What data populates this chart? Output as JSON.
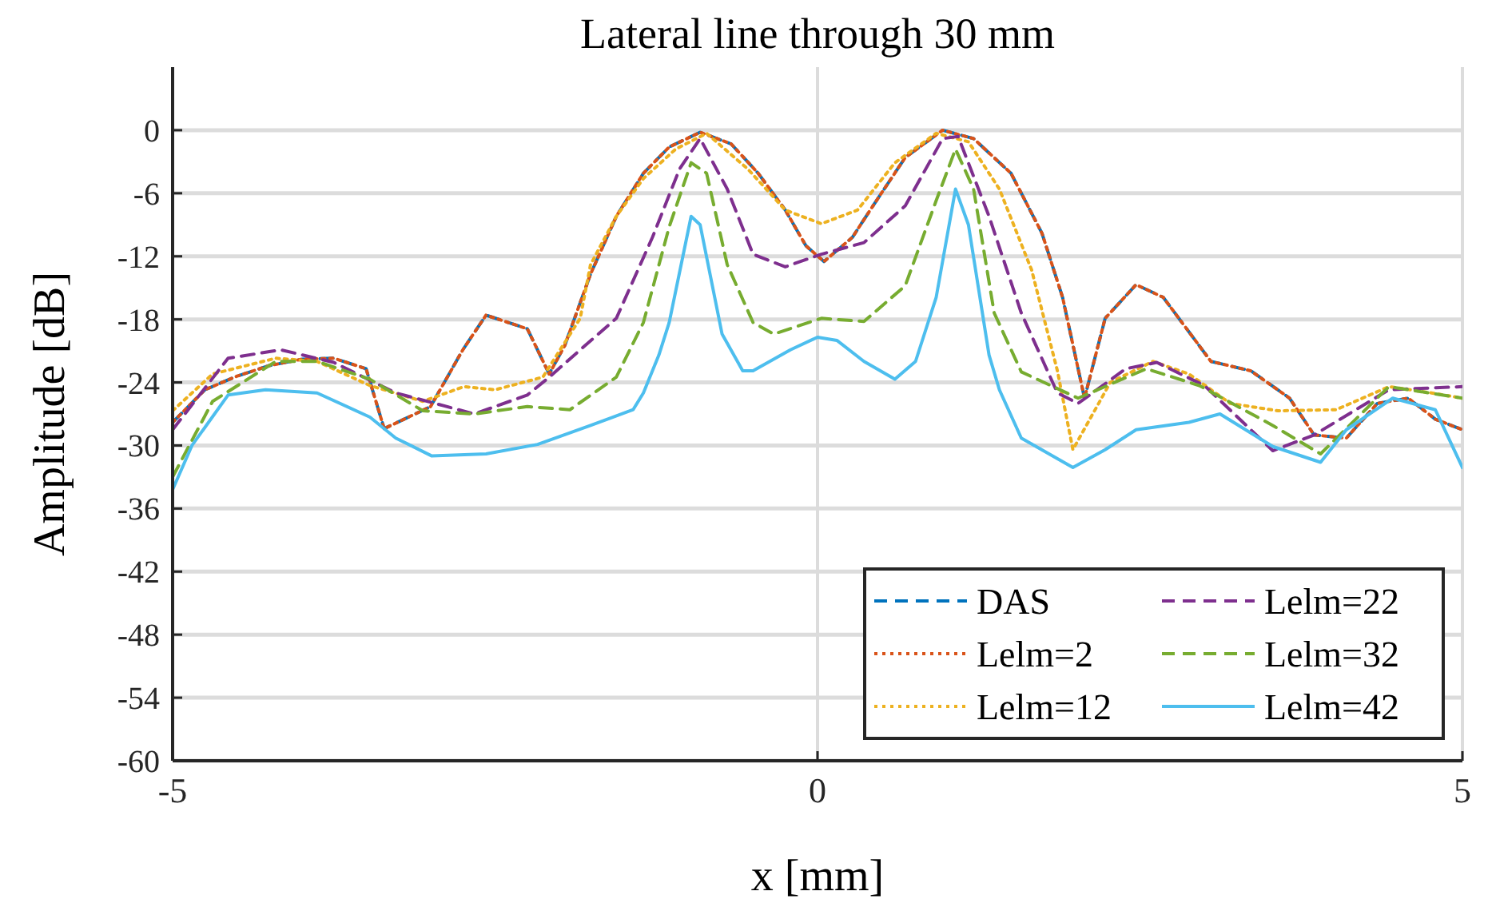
{
  "chart_data": {
    "type": "line",
    "title": "Lateral line through 30 mm",
    "xlabel": "x [mm]",
    "ylabel": "Amplitude [dB]",
    "xlim": [
      -5,
      5
    ],
    "xticks": [
      -5,
      0,
      5
    ],
    "ylim": [
      -60,
      6
    ],
    "yticks": [
      0,
      -6,
      -12,
      -18,
      -24,
      -30,
      -36,
      -42,
      -48,
      -54,
      -60
    ],
    "grid": true,
    "legend": "bottom right",
    "marker": "none",
    "series": [
      {
        "name": "DAS",
        "color": "#0072bd",
        "line_style": "dashed",
        "x": [
          -5,
          -4.75,
          -4.5,
          -4.25,
          -4,
          -3.75,
          -3.5,
          -3.36,
          -3,
          -2.75,
          -2.57,
          -2.25,
          -2.08,
          -1.96,
          -1.86,
          -1.76,
          -1.56,
          -1.35,
          -1.15,
          -0.91,
          -0.67,
          -0.46,
          -0.25,
          -0.09,
          0.05,
          0.27,
          0.43,
          0.68,
          0.97,
          1.21,
          1.5,
          1.74,
          1.9,
          2.07,
          2.23,
          2.47,
          2.68,
          3.05,
          3.36,
          3.66,
          3.85,
          4.1,
          4.34,
          4.58,
          4.79,
          5
        ],
        "values": [
          -27.8,
          -24.7,
          -23.4,
          -22.4,
          -21.8,
          -21.7,
          -22.7,
          -28.4,
          -26.3,
          -20.9,
          -17.6,
          -18.9,
          -23.2,
          -20.5,
          -17.1,
          -13.7,
          -8.2,
          -4.1,
          -1.6,
          -0.2,
          -1.3,
          -4.1,
          -7.6,
          -11,
          -12.5,
          -10.2,
          -7.2,
          -2.6,
          0,
          -0.8,
          -4.1,
          -9.8,
          -15.9,
          -25.5,
          -17.9,
          -14.7,
          -15.9,
          -22,
          -22.9,
          -25.5,
          -29,
          -29.3,
          -26,
          -25.5,
          -27.5,
          -28.5
        ]
      },
      {
        "name": "Lelm=2",
        "color": "#d95319",
        "line_style": "dotted",
        "x": [
          -5,
          -4.75,
          -4.5,
          -4.25,
          -4,
          -3.75,
          -3.5,
          -3.36,
          -3,
          -2.75,
          -2.57,
          -2.25,
          -2.08,
          -1.96,
          -1.86,
          -1.76,
          -1.56,
          -1.35,
          -1.15,
          -0.91,
          -0.67,
          -0.46,
          -0.25,
          -0.09,
          0.05,
          0.27,
          0.43,
          0.68,
          0.97,
          1.21,
          1.5,
          1.74,
          1.9,
          2.07,
          2.23,
          2.47,
          2.68,
          3.05,
          3.36,
          3.66,
          3.85,
          4.1,
          4.34,
          4.58,
          4.79,
          5
        ],
        "values": [
          -27.8,
          -24.7,
          -23.4,
          -22.4,
          -21.8,
          -21.7,
          -22.7,
          -28.4,
          -26.3,
          -20.9,
          -17.6,
          -18.9,
          -23.2,
          -20.5,
          -17.1,
          -13.7,
          -8.2,
          -4.1,
          -1.6,
          -0.2,
          -1.3,
          -4.1,
          -7.6,
          -11,
          -12.5,
          -10.2,
          -7.2,
          -2.6,
          0,
          -0.8,
          -4.1,
          -9.8,
          -15.9,
          -25.5,
          -17.9,
          -14.7,
          -15.9,
          -22,
          -22.9,
          -25.5,
          -29,
          -29.3,
          -26,
          -25.5,
          -27.5,
          -28.5
        ]
      },
      {
        "name": "Lelm=12",
        "color": "#edb120",
        "line_style": "dotted",
        "x": [
          -5,
          -4.69,
          -4.2,
          -3.88,
          -3.47,
          -3.06,
          -2.74,
          -2.5,
          -2.13,
          -1.84,
          -1.76,
          -1.56,
          -1.35,
          -1.1,
          -0.86,
          -0.54,
          -0.25,
          0.03,
          0.31,
          0.6,
          0.92,
          1.17,
          1.41,
          1.66,
          1.86,
          1.98,
          2.27,
          2.6,
          2.88,
          3.2,
          3.57,
          4.02,
          4.43,
          4.76,
          5
        ],
        "values": [
          -26.7,
          -23.2,
          -21.7,
          -22,
          -24.3,
          -25.8,
          -24.4,
          -24.7,
          -23.5,
          -17.9,
          -12.8,
          -8.2,
          -4.6,
          -1.8,
          -0.3,
          -3.7,
          -7.6,
          -8.9,
          -7.6,
          -3.1,
          -0.3,
          -1.1,
          -5.6,
          -13.3,
          -22.9,
          -30.4,
          -24,
          -22,
          -23.2,
          -26,
          -26.7,
          -26.6,
          -24.4,
          -25,
          -25.5
        ]
      },
      {
        "name": "Lelm=22",
        "color": "#7e2f8e",
        "line_style": "dashed",
        "x": [
          -5,
          -4.57,
          -4.16,
          -3.75,
          -3.27,
          -2.66,
          -2.25,
          -2.08,
          -1.84,
          -1.56,
          -1.28,
          -1.07,
          -0.91,
          -0.7,
          -0.5,
          -0.25,
          0.03,
          0.36,
          0.68,
          0.97,
          1.09,
          1.33,
          1.58,
          1.86,
          2.02,
          2.39,
          2.63,
          3,
          3.53,
          3.85,
          4.43,
          5
        ],
        "values": [
          -28.5,
          -21.7,
          -20.9,
          -22.1,
          -25,
          -27,
          -25.2,
          -23.5,
          -20.9,
          -17.9,
          -10.2,
          -3.7,
          -0.8,
          -5.6,
          -11.8,
          -13,
          -11.8,
          -10.7,
          -7.2,
          -0.8,
          -0.6,
          -8.2,
          -17.4,
          -25,
          -26,
          -22.7,
          -22.1,
          -24.3,
          -30.5,
          -29,
          -24.7,
          -24.4
        ]
      },
      {
        "name": "Lelm=32",
        "color": "#77ac30",
        "line_style": "dashed",
        "x": [
          -5,
          -4.69,
          -4.2,
          -3.88,
          -3.47,
          -3.06,
          -2.66,
          -2.25,
          -1.92,
          -1.56,
          -1.35,
          -1.15,
          -0.98,
          -0.86,
          -0.7,
          -0.5,
          -0.34,
          0.03,
          0.36,
          0.68,
          0.92,
          1.07,
          1.21,
          1.37,
          1.58,
          2.02,
          2.55,
          2.96,
          3.53,
          3.9,
          4.43,
          5
        ],
        "values": [
          -33,
          -25.8,
          -22,
          -22,
          -23.7,
          -26.7,
          -27,
          -26.3,
          -26.6,
          -23.5,
          -18.3,
          -9.2,
          -3.1,
          -4.1,
          -12.8,
          -18.3,
          -19.4,
          -17.9,
          -18.2,
          -14.8,
          -6.7,
          -1.8,
          -5.6,
          -17.4,
          -23,
          -25.5,
          -22.7,
          -24.3,
          -28.1,
          -30.8,
          -24.4,
          -25.5
        ]
      },
      {
        "name": "Lelm=42",
        "color": "#4dbeee",
        "line_style": "solid",
        "x": [
          -5,
          -4.85,
          -4.57,
          -4.28,
          -3.88,
          -3.47,
          -3.27,
          -2.99,
          -2.57,
          -2.17,
          -1.76,
          -1.43,
          -1.35,
          -1.23,
          -1.15,
          -0.98,
          -0.91,
          -0.74,
          -0.58,
          -0.5,
          -0.21,
          0,
          0.15,
          0.36,
          0.6,
          0.76,
          0.92,
          1.07,
          1.17,
          1.33,
          1.41,
          1.58,
          1.98,
          2.23,
          2.47,
          2.88,
          3.12,
          3.53,
          3.9,
          4.1,
          4.46,
          4.79,
          5
        ],
        "values": [
          -34.2,
          -30,
          -25.2,
          -24.7,
          -25,
          -27.3,
          -29.3,
          -31,
          -30.8,
          -29.9,
          -28.1,
          -26.6,
          -25,
          -21.4,
          -18.3,
          -8.2,
          -9,
          -19.4,
          -22.9,
          -22.9,
          -20.9,
          -19.7,
          -20,
          -22,
          -23.7,
          -22,
          -15.9,
          -5.6,
          -9,
          -21.4,
          -24.7,
          -29.3,
          -32.1,
          -30.4,
          -28.5,
          -27.8,
          -27,
          -30.1,
          -31.6,
          -28.5,
          -25.5,
          -26.6,
          -32.1
        ]
      }
    ]
  }
}
